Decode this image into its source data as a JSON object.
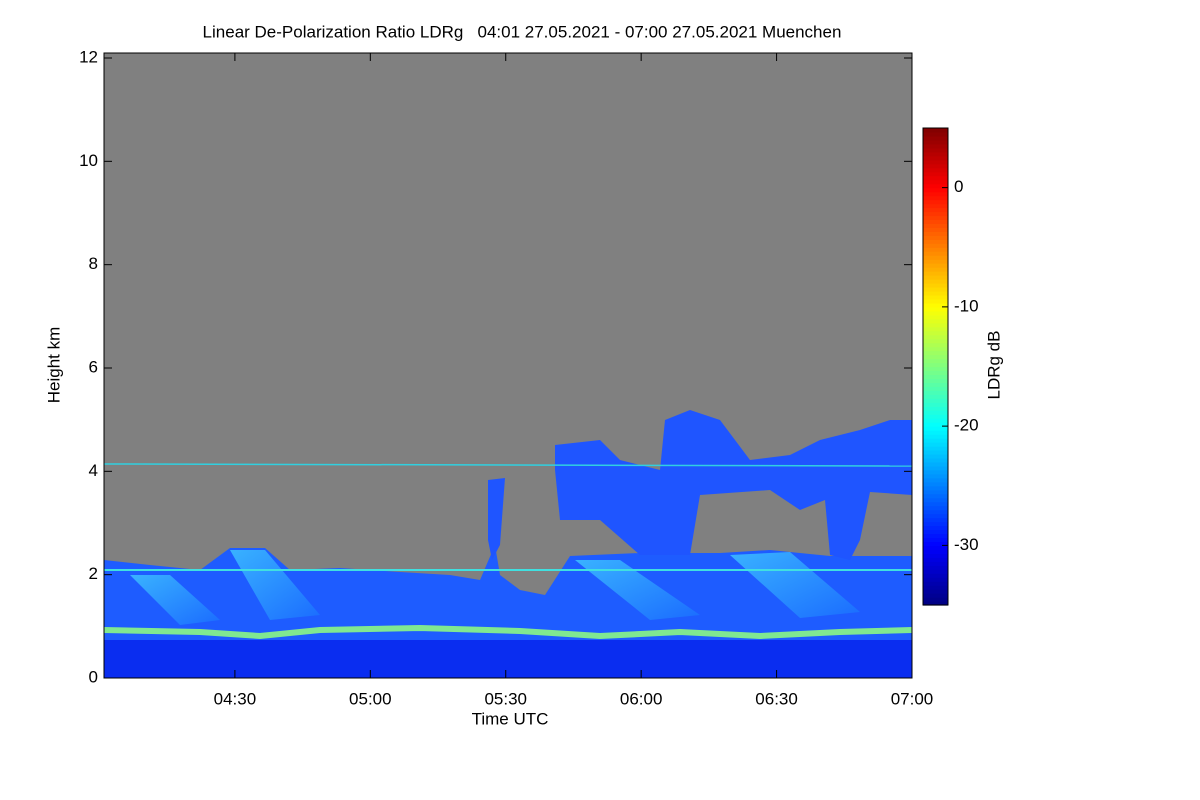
{
  "chart_data": {
    "type": "heatmap",
    "title": "Linear De-Polarization Ratio LDRg   04:01 27.05.2021 - 07:00 27.05.2021 Muenchen",
    "x_label": "Time UTC",
    "y_label": "Height km",
    "colorbar_label": "LDRg dB",
    "colormap": "jet",
    "xlim": [
      4.0167,
      7.0
    ],
    "xticks": [
      {
        "value": 4.5,
        "label": "04:30"
      },
      {
        "value": 5.0,
        "label": "05:00"
      },
      {
        "value": 5.5,
        "label": "05:30"
      },
      {
        "value": 6.0,
        "label": "06:00"
      },
      {
        "value": 6.5,
        "label": "06:30"
      },
      {
        "value": 7.0,
        "label": "07:00"
      }
    ],
    "ylim": [
      0,
      12
    ],
    "yticks": [
      0,
      2,
      4,
      6,
      8,
      10,
      12
    ],
    "clim": [
      -35,
      5
    ],
    "cticks": [
      0,
      -10,
      -20,
      -30
    ]
  }
}
